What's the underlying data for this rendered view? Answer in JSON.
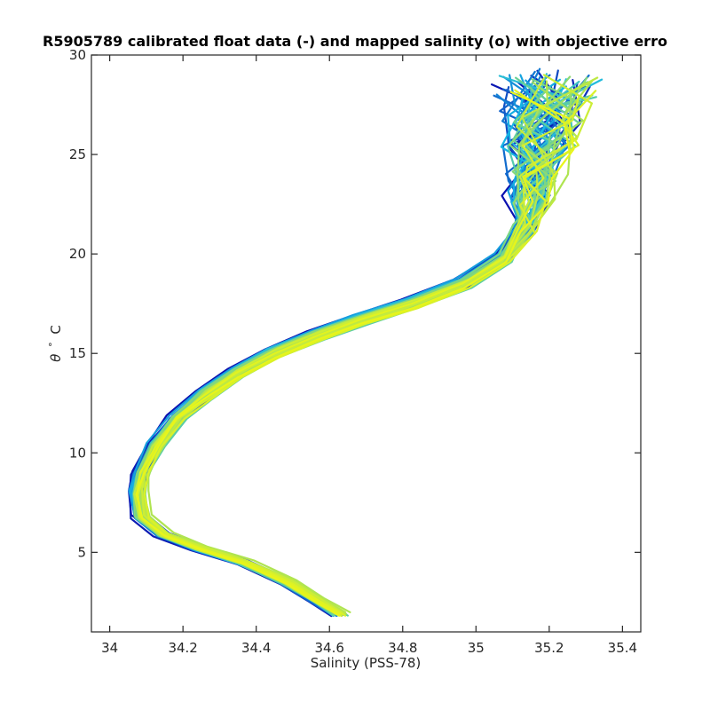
{
  "chart_data": {
    "type": "line",
    "title": "R5905789 calibrated float data (-) and mapped salinity (o) with objective erro",
    "xlabel": "Salinity (PSS-78)",
    "ylabel_symbol": "θ",
    "ylabel_degree": "°",
    "ylabel_unit": "C",
    "xlim": [
      33.95,
      35.45
    ],
    "ylim": [
      1,
      30
    ],
    "xticks": [
      34,
      34.2,
      34.4,
      34.6,
      34.8,
      35,
      35.2,
      35.4
    ],
    "xtick_labels": [
      "34",
      "34.2",
      "34.4",
      "34.6",
      "34.8",
      "35",
      "35.2",
      "35.4"
    ],
    "yticks": [
      5,
      10,
      15,
      20,
      25,
      30
    ],
    "ytick_labels": [
      "5",
      "10",
      "15",
      "20",
      "25",
      "30"
    ],
    "grid": false,
    "colormap": "parula",
    "profile_count": 60,
    "profile_color_start": "#0a10b0",
    "profile_color_mid": "#17b8e6",
    "profile_color_end": "#e8f51a",
    "base_profile": {
      "salinity": [
        34.62,
        34.56,
        34.48,
        34.36,
        34.24,
        34.14,
        34.08,
        34.07,
        34.08,
        34.12,
        34.18,
        34.25,
        34.34,
        34.44,
        34.56,
        34.68,
        34.82,
        34.96,
        35.07,
        35.13,
        35.15,
        35.16,
        35.18,
        35.2,
        35.22
      ],
      "theta": [
        1.9,
        2.6,
        3.5,
        4.5,
        5.2,
        5.9,
        6.8,
        8.0,
        9.0,
        10.4,
        11.8,
        12.9,
        14.0,
        15.0,
        15.9,
        16.7,
        17.5,
        18.5,
        19.8,
        21.3,
        22.8,
        24.0,
        25.5,
        27.0,
        28.6
      ]
    }
  }
}
